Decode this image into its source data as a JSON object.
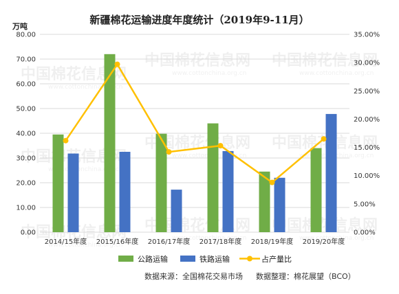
{
  "chart_data": {
    "type": "bar",
    "title": "新疆棉花运输进度年度统计（2019年9-11月）",
    "y_left_unit": "万吨",
    "ylim_left": [
      0,
      80
    ],
    "ylim_right": [
      0,
      35
    ],
    "y_left_ticks": [
      "0.00",
      "10.00",
      "20.00",
      "30.00",
      "40.00",
      "50.00",
      "60.00",
      "70.00",
      "80.00"
    ],
    "y_right_ticks": [
      "0.00%",
      "5.00%",
      "10.00%",
      "15.00%",
      "20.00%",
      "25.00%",
      "30.00%",
      "35.00%"
    ],
    "categories": [
      "2014/15年度",
      "2015/16年度",
      "2016/17年度",
      "2017/18年度",
      "2018/19年度",
      "2019/20年度"
    ],
    "series": [
      {
        "name": "公路运输",
        "type": "bar",
        "axis": "left",
        "color": "#70ad47",
        "values": [
          39.5,
          72.0,
          39.8,
          44.0,
          24.5,
          34.0
        ]
      },
      {
        "name": "铁路运输",
        "type": "bar",
        "axis": "left",
        "color": "#4472c4",
        "values": [
          31.8,
          32.5,
          17.2,
          32.8,
          22.0,
          47.8
        ]
      },
      {
        "name": "占产量比",
        "type": "line",
        "axis": "right",
        "color": "#ffc000",
        "values": [
          16.2,
          29.7,
          14.2,
          15.3,
          8.8,
          16.5
        ]
      }
    ],
    "grid": true,
    "legend": "bottom",
    "source_left": "数据来源：全国棉花交易市场",
    "source_right": "数据整理：棉花展望（BCO）",
    "watermark": "中国棉花信息网",
    "watermark_url": "www.cottonchina.org.cn"
  }
}
